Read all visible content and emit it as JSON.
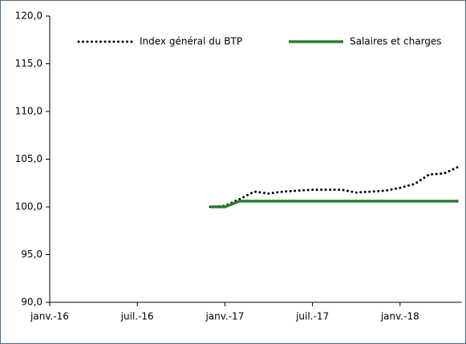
{
  "chart_data": {
    "type": "line",
    "categories": [
      "janv.-16",
      null,
      null,
      null,
      null,
      null,
      "juil.-16",
      null,
      null,
      null,
      null,
      null,
      "janv.-17",
      null,
      null,
      null,
      null,
      null,
      "juil.-17",
      null,
      null,
      null,
      null,
      null,
      "janv.-18",
      null,
      null,
      null,
      null
    ],
    "series": [
      {
        "name": "Index général du BTP",
        "color": "#000000",
        "style": "dotted",
        "values": [
          null,
          null,
          null,
          null,
          null,
          null,
          null,
          null,
          null,
          null,
          null,
          100.0,
          100.1,
          100.8,
          101.6,
          101.4,
          101.6,
          101.7,
          101.8,
          101.8,
          101.8,
          101.5,
          101.6,
          101.7,
          102.0,
          102.4,
          103.4,
          103.5,
          104.2
        ]
      },
      {
        "name": "Salaires et charges",
        "color": "#2e7d32",
        "style": "solid",
        "values": [
          null,
          null,
          null,
          null,
          null,
          null,
          null,
          null,
          null,
          null,
          null,
          100.0,
          100.0,
          100.6,
          100.6,
          100.6,
          100.6,
          100.6,
          100.6,
          100.6,
          100.6,
          100.6,
          100.6,
          100.6,
          100.6,
          100.6,
          100.6,
          100.6,
          100.6
        ]
      }
    ],
    "ylim": [
      90,
      120
    ],
    "yticks": [
      {
        "value": 90,
        "label": "90,0"
      },
      {
        "value": 95,
        "label": "95,0"
      },
      {
        "value": 100,
        "label": "100,0"
      },
      {
        "value": 105,
        "label": "105,0"
      },
      {
        "value": 110,
        "label": "110,0"
      },
      {
        "value": 115,
        "label": "115,0"
      },
      {
        "value": 120,
        "label": "120,0"
      }
    ],
    "legend": "top"
  }
}
